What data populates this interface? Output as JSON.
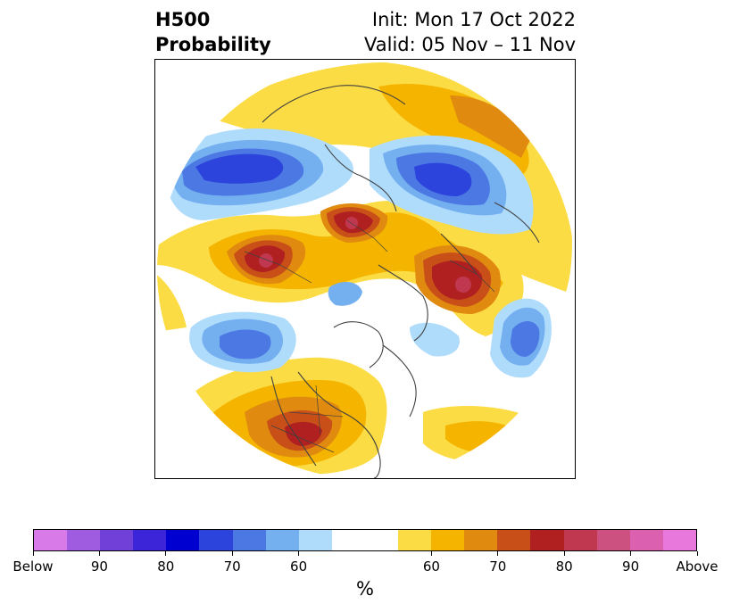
{
  "title": {
    "left_line1": "H500",
    "left_line2": "Probability",
    "right_line1": "Init: Mon 17 Oct 2022",
    "right_line2": "Valid: 05 Nov – 11 Nov"
  },
  "map": {
    "projection": "north-polar-stereographic",
    "map_features": [
      "coastlines",
      "country-borders",
      "us-state-borders"
    ],
    "feature_line_color": "#404040"
  },
  "colorbar": {
    "colors": [
      "#d87ae8",
      "#a05ce0",
      "#7040d8",
      "#3c24d8",
      "#0000d0",
      "#2c44dc",
      "#4c78e4",
      "#74b0f0",
      "#b0dcfc",
      "#ffffff",
      "#ffffff",
      "#fcdc44",
      "#f4b400",
      "#e08a10",
      "#c85018",
      "#b02020",
      "#c03850",
      "#cc5080",
      "#dc60b0",
      "#e878dc"
    ],
    "tick_labels": [
      "Below",
      "90",
      "80",
      "70",
      "60",
      "60",
      "70",
      "80",
      "90",
      "Above"
    ],
    "unit_label": "%"
  }
}
